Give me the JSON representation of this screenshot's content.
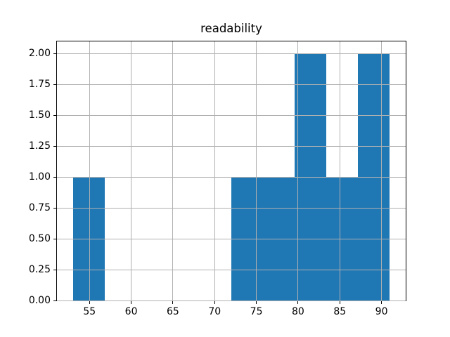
{
  "figure": {
    "background": "#ffffff"
  },
  "chart_data": {
    "type": "bar",
    "subtype": "histogram",
    "title": "readability",
    "bin_edges": [
      53.0,
      56.8,
      60.6,
      64.4,
      68.2,
      72.0,
      75.8,
      79.6,
      83.4,
      87.2,
      91.0
    ],
    "counts": [
      1,
      0,
      0,
      0,
      0,
      1,
      1,
      2,
      1,
      2
    ],
    "xlim": [
      51.1,
      92.9
    ],
    "ylim": [
      0,
      2.1
    ],
    "x_ticks": [
      {
        "value": 55,
        "label": "55"
      },
      {
        "value": 60,
        "label": "60"
      },
      {
        "value": 65,
        "label": "65"
      },
      {
        "value": 70,
        "label": "70"
      },
      {
        "value": 75,
        "label": "75"
      },
      {
        "value": 80,
        "label": "80"
      },
      {
        "value": 85,
        "label": "85"
      },
      {
        "value": 90,
        "label": "90"
      }
    ],
    "y_ticks": [
      {
        "value": 0.0,
        "label": "0.00"
      },
      {
        "value": 0.25,
        "label": "0.25"
      },
      {
        "value": 0.5,
        "label": "0.50"
      },
      {
        "value": 0.75,
        "label": "0.75"
      },
      {
        "value": 1.0,
        "label": "1.00"
      },
      {
        "value": 1.25,
        "label": "1.25"
      },
      {
        "value": 1.5,
        "label": "1.50"
      },
      {
        "value": 1.75,
        "label": "1.75"
      },
      {
        "value": 2.0,
        "label": "2.00"
      }
    ],
    "grid": true,
    "grid_above_bars": true,
    "legend": null,
    "xlabel": "",
    "ylabel": "",
    "colors": {
      "bar": "#1f77b4",
      "grid": "#b0b0b0",
      "spine": "#000000",
      "text": "#000000",
      "background": "#ffffff"
    }
  }
}
